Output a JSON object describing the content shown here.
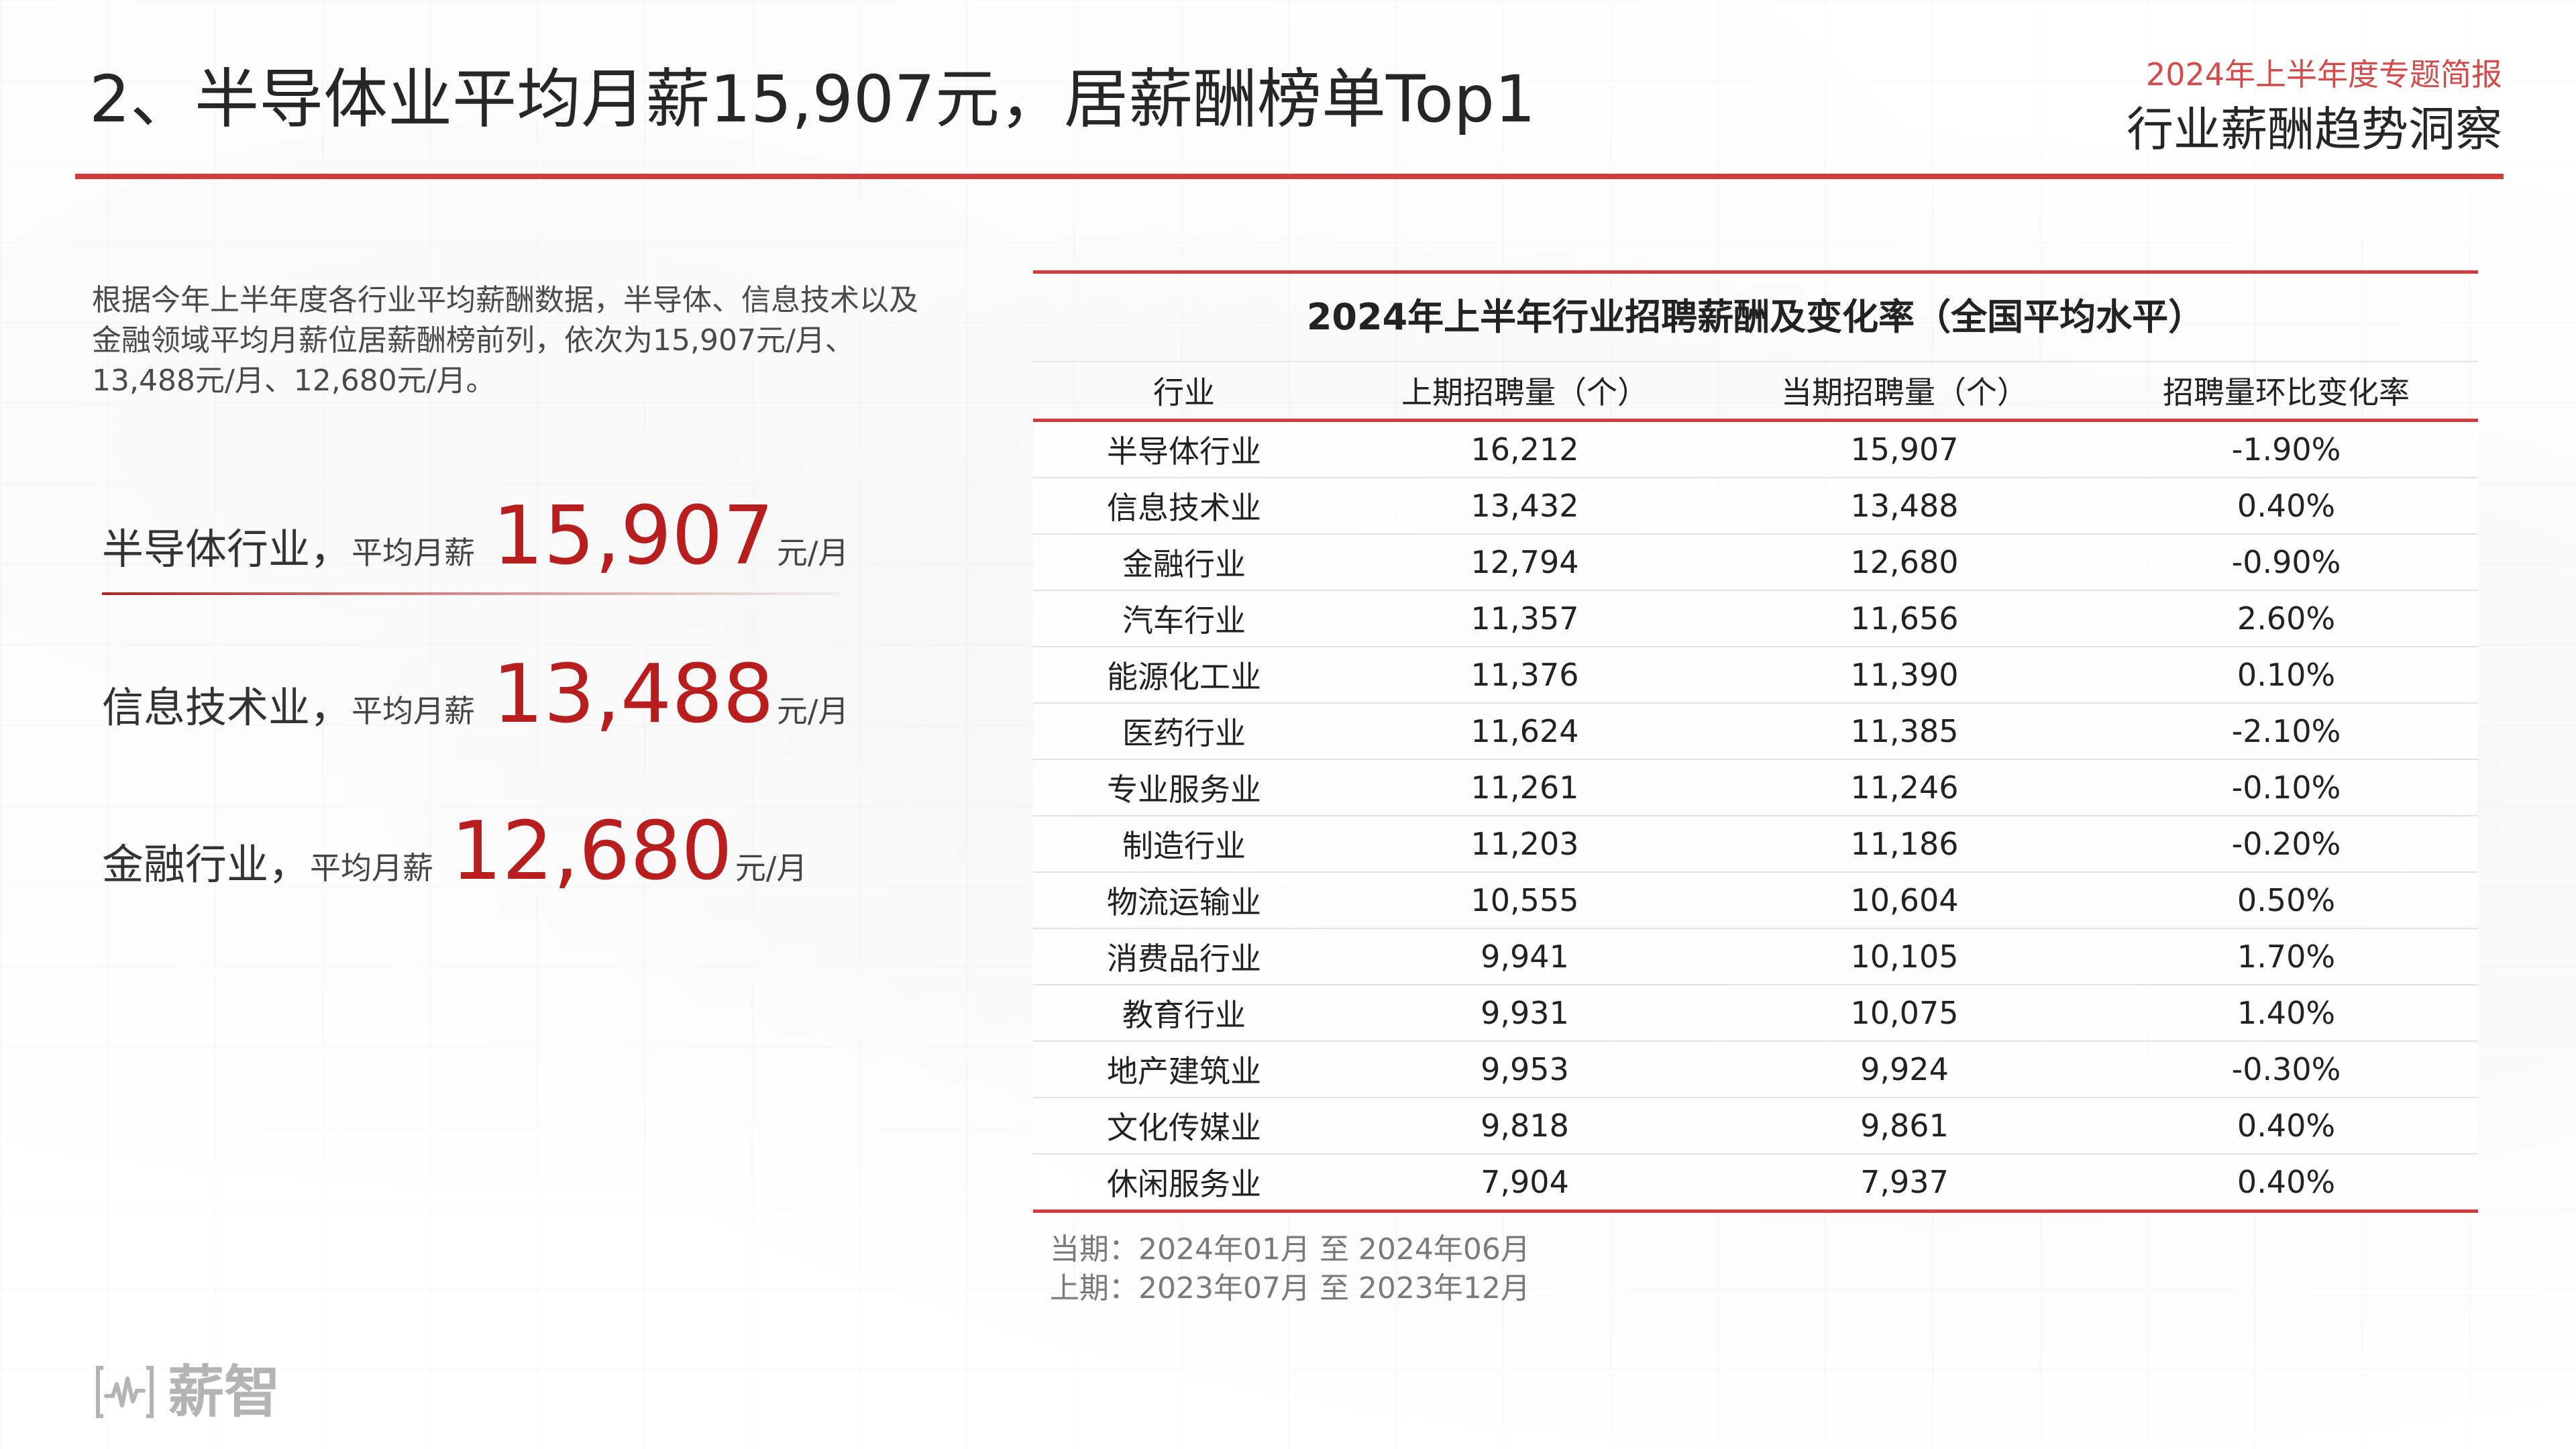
{
  "header": {
    "title": "2、半导体业平均月薪15,907元，居薪酬榜单Top1",
    "report_tag": "2024年上半年度专题简报",
    "report_name": "行业薪酬趋势洞察"
  },
  "intro": {
    "text": "根据今年上半年度各行业平均薪酬数据，半导体、信息技术以及金融领域平均月薪位居薪酬榜前列，依次为15,907元/月、13,488元/月、12,680元/月。"
  },
  "highlights": [
    {
      "industry": "半导体行业，",
      "avg_label": "平均月薪",
      "value": "15,907",
      "unit": "元/月"
    },
    {
      "industry": "信息技术业，",
      "avg_label": "平均月薪",
      "value": "13,488",
      "unit": "元/月"
    },
    {
      "industry": "金融行业，",
      "avg_label": "平均月薪",
      "value": "12,680",
      "unit": "元/月"
    }
  ],
  "table": {
    "caption": "2024年上半年行业招聘薪酬及变化率（全国平均水平）",
    "headers": [
      "行业",
      "上期招聘量（个）",
      "当期招聘量（个）",
      "招聘量环比变化率"
    ],
    "rows": [
      [
        "半导体行业",
        "16,212",
        "15,907",
        "-1.90%"
      ],
      [
        "信息技术业",
        "13,432",
        "13,488",
        "0.40%"
      ],
      [
        "金融行业",
        "12,794",
        "12,680",
        "-0.90%"
      ],
      [
        "汽车行业",
        "11,357",
        "11,656",
        "2.60%"
      ],
      [
        "能源化工业",
        "11,376",
        "11,390",
        "0.10%"
      ],
      [
        "医药行业",
        "11,624",
        "11,385",
        "-2.10%"
      ],
      [
        "专业服务业",
        "11,261",
        "11,246",
        "-0.10%"
      ],
      [
        "制造行业",
        "11,203",
        "11,186",
        "-0.20%"
      ],
      [
        "物流运输业",
        "10,555",
        "10,604",
        "0.50%"
      ],
      [
        "消费品行业",
        "9,941",
        "10,105",
        "1.70%"
      ],
      [
        "教育行业",
        "9,931",
        "10,075",
        "1.40%"
      ],
      [
        "地产建筑业",
        "9,953",
        "9,924",
        "-0.30%"
      ],
      [
        "文化传媒业",
        "9,818",
        "9,861",
        "0.40%"
      ],
      [
        "休闲服务业",
        "7,904",
        "7,937",
        "0.40%"
      ]
    ]
  },
  "notes": {
    "current_period": "当期：2024年01月 至 2024年06月",
    "previous_period": "上期：2023年07月 至 2023年12月"
  },
  "logo": {
    "text": "薪智",
    "icon": "waveform-logo-icon"
  },
  "colors": {
    "accent_red": "#d23c3c",
    "value_red": "#b81e1e",
    "tag_red": "#d24c4c",
    "logo_gray": "#b4b4b4"
  }
}
